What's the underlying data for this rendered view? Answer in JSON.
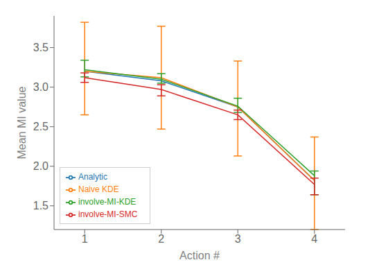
{
  "chart_data": {
    "type": "line",
    "xlabel": "Action #",
    "ylabel": "Mean MI value",
    "x": [
      1,
      2,
      3,
      4
    ],
    "xlim": [
      0.6,
      4.4
    ],
    "ylim": [
      1.2,
      3.9
    ],
    "xticks": [
      1,
      2,
      3,
      4
    ],
    "yticks": [
      1.5,
      2.0,
      2.5,
      3.0,
      3.5
    ],
    "grid": false,
    "legend": "lower left",
    "series": [
      {
        "name": "Analytic",
        "color": "#1f77b4",
        "values": [
          3.2,
          3.08,
          2.75,
          1.82
        ]
      },
      {
        "name": "Naive KDE",
        "color": "#ff7f0e",
        "values": [
          3.2,
          3.12,
          2.75,
          1.82
        ],
        "yerr_low": [
          0.55,
          0.65,
          0.62,
          0.62
        ],
        "yerr_high": [
          0.62,
          0.65,
          0.58,
          0.55
        ]
      },
      {
        "name": "involve-MI-KDE",
        "color": "#2ca02c",
        "values": [
          3.22,
          3.1,
          2.76,
          1.88
        ],
        "yerr_low": [
          0.09,
          0.05,
          0.08,
          0.24
        ],
        "yerr_high": [
          0.12,
          0.07,
          0.1,
          0.06
        ]
      },
      {
        "name": "involve-MI-SMC",
        "color": "#d62728",
        "values": [
          3.12,
          2.97,
          2.65,
          1.77
        ],
        "yerr_low": [
          0.06,
          0.08,
          0.06,
          0.13
        ],
        "yerr_high": [
          0.06,
          0.06,
          0.06,
          0.08
        ]
      }
    ]
  }
}
